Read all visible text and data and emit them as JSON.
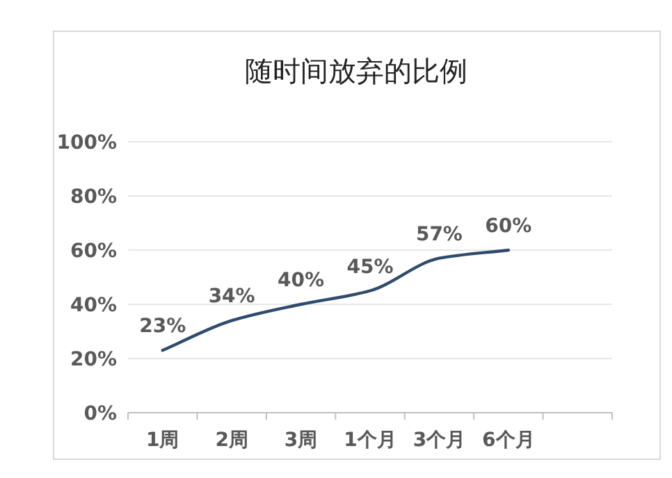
{
  "chart_data": {
    "type": "line",
    "title": "随时间放弃的比例",
    "categories": [
      "1周",
      "2周",
      "3周",
      "1个月",
      "3个月",
      "6个月",
      null
    ],
    "series": [
      {
        "color": "#2e4b6e",
        "values": [
          23,
          34,
          40,
          45,
          57,
          60,
          null
        ],
        "value_labels": [
          "23%",
          "34%",
          "40%",
          "45%",
          "57%",
          "60%",
          null
        ]
      }
    ],
    "ylim": [
      0,
      100
    ],
    "yticks": [
      {
        "value": 0,
        "label": "0%"
      },
      {
        "value": 20,
        "label": "20%"
      },
      {
        "value": 40,
        "label": "40%"
      },
      {
        "value": 60,
        "label": "60%"
      },
      {
        "value": 80,
        "label": "80%"
      },
      {
        "value": 100,
        "label": "100%"
      }
    ],
    "grid": "y",
    "marker": "none",
    "line_style": "solid"
  }
}
